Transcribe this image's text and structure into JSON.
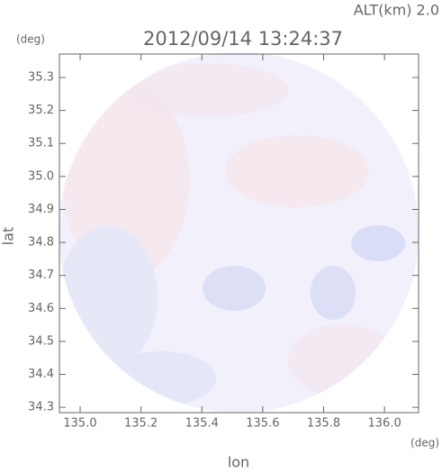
{
  "chart_data": {
    "type": "radar_map",
    "title": "2012/09/14 13:24:37",
    "annotation": "ALT(km) 2.0",
    "xlabel": "lon",
    "xunit": "(deg)",
    "ylabel": "lat",
    "yunit": "(deg)",
    "xlim": [
      134.932,
      136.112
    ],
    "ylim": [
      34.284,
      35.371
    ],
    "xticks": [
      {
        "value": 135,
        "label": "135.0"
      },
      135.2,
      135.4,
      135.6,
      135.8,
      {
        "value": 136,
        "label": "136.0"
      }
    ],
    "yticks": [
      34.3,
      34.4,
      34.5,
      34.6,
      34.7,
      34.8,
      34.9,
      {
        "value": 35,
        "label": "35.0"
      },
      35.1,
      35.2,
      35.3
    ]
  }
}
